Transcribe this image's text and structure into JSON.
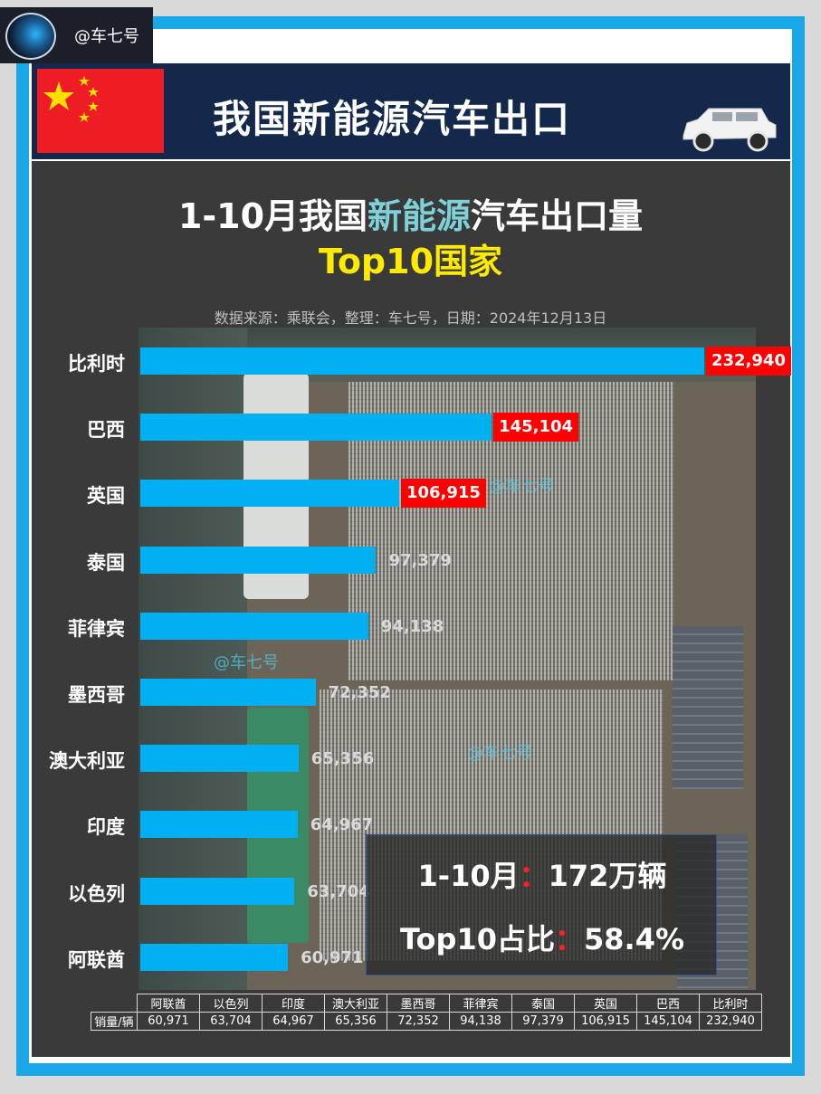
{
  "badge": {
    "handle": "@车七号"
  },
  "header": {
    "title": "我国新能源汽车出口",
    "flag_icon": "china-flag-icon",
    "car_icon": "suv-car-icon"
  },
  "chart_data": {
    "type": "bar",
    "orientation": "horizontal",
    "title_part1": "1-10月我国",
    "title_highlight": "新能源",
    "title_part2": "汽车出口量",
    "subtitle": "Top10国家",
    "source": "数据来源：乘联会，整理：车七号，日期：2024年12月13日",
    "categories": [
      "比利时",
      "巴西",
      "英国",
      "泰国",
      "菲律宾",
      "墨西哥",
      "澳大利亚",
      "印度",
      "以色列",
      "阿联酋"
    ],
    "values": [
      232940,
      145104,
      106915,
      97379,
      94138,
      72352,
      65356,
      64967,
      63704,
      60971
    ],
    "value_labels": [
      "232,940",
      "145,104",
      "106,915",
      "97,379",
      "94,138",
      "72,352",
      "65,356",
      "64,967",
      "63,704",
      "60,971"
    ],
    "highlighted_top": 3,
    "bar_color": "#00b0f0",
    "highlight_color": "#ff0000"
  },
  "watermarks": [
    "@车七号",
    "@车七号",
    "@车七号"
  ],
  "summary": {
    "line1_label": "1-10月",
    "line1_colon": "：",
    "line1_value": "172万辆",
    "line2_label": "Top10占比",
    "line2_colon": "：",
    "line2_value": "58.4%"
  },
  "table": {
    "row_header": "销量/辆",
    "columns": [
      "阿联酋",
      "以色列",
      "印度",
      "澳大利亚",
      "墨西哥",
      "菲律宾",
      "泰国",
      "英国",
      "巴西",
      "比利时"
    ],
    "values": [
      "60,971",
      "63,704",
      "64,967",
      "65,356",
      "72,352",
      "94,138",
      "97,379",
      "106,915",
      "145,104",
      "232,940"
    ]
  }
}
